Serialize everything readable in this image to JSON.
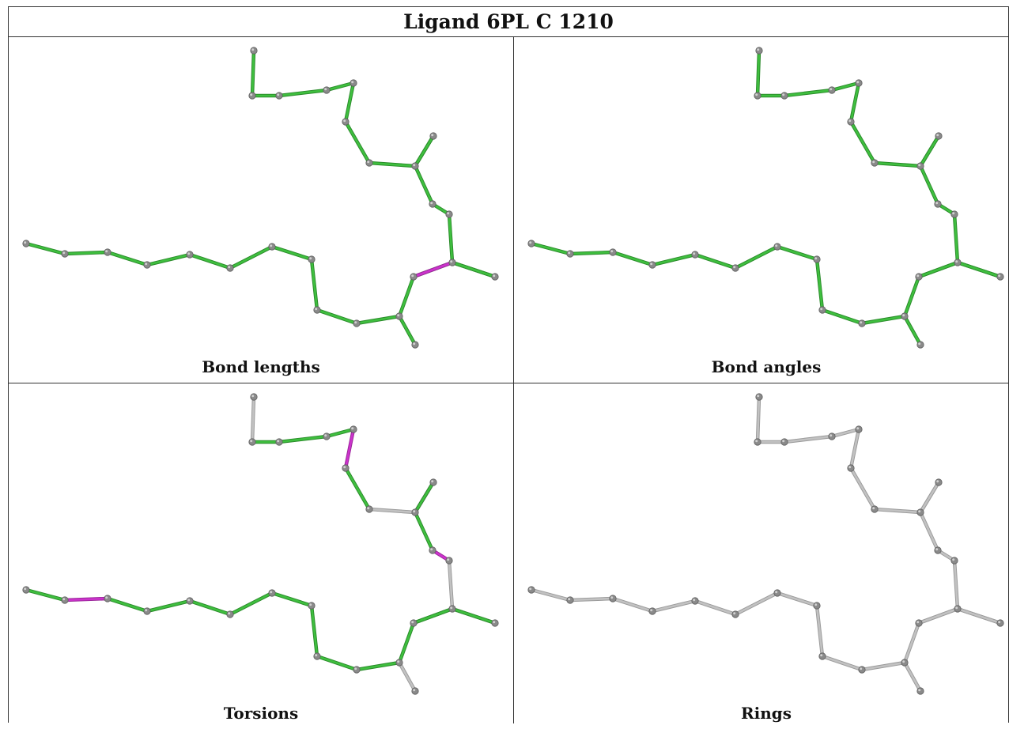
{
  "title": "Ligand 6PL C 1210",
  "colors": {
    "good": "#3fbf3f",
    "bad": "#cc33cc",
    "neutral": "#c2c2c2",
    "atom": "#8a8a8a",
    "border": "#333333"
  },
  "panels": [
    {
      "label": "Bond lengths",
      "bond_status": [
        "good",
        "good",
        "good",
        "good",
        "good",
        "good",
        "good",
        "good",
        "good",
        "good",
        "good",
        "good",
        "good",
        "good",
        "good",
        "good",
        "good",
        "good",
        "good",
        "good",
        "good",
        "good",
        "good",
        "good",
        "good",
        "bad",
        "good",
        "good"
      ]
    },
    {
      "label": "Bond angles",
      "bond_status": [
        "good",
        "good",
        "good",
        "good",
        "good",
        "good",
        "good",
        "good",
        "good",
        "good",
        "good",
        "good",
        "good",
        "good",
        "good",
        "good",
        "good",
        "good",
        "good",
        "good",
        "good",
        "good",
        "good",
        "good",
        "good",
        "good",
        "good",
        "good"
      ]
    },
    {
      "label": "Torsions",
      "bond_status": [
        "neutral",
        "good",
        "good",
        "good",
        "bad",
        "good",
        "neutral",
        "bad",
        "good",
        "bad",
        "neutral",
        "neutral",
        "good",
        "good",
        "good",
        "good",
        "good",
        "good",
        "good",
        "good",
        "good",
        "good",
        "bad",
        "good",
        "neutral",
        "good",
        "good",
        "good"
      ]
    },
    {
      "label": "Rings",
      "bond_status": [
        "neutral",
        "neutral",
        "neutral",
        "neutral",
        "neutral",
        "neutral",
        "neutral",
        "neutral",
        "neutral",
        "neutral",
        "neutral",
        "neutral",
        "neutral",
        "neutral",
        "neutral",
        "neutral",
        "neutral",
        "neutral",
        "neutral",
        "neutral",
        "neutral",
        "neutral",
        "neutral",
        "neutral",
        "neutral",
        "neutral",
        "neutral",
        "neutral"
      ]
    }
  ]
}
